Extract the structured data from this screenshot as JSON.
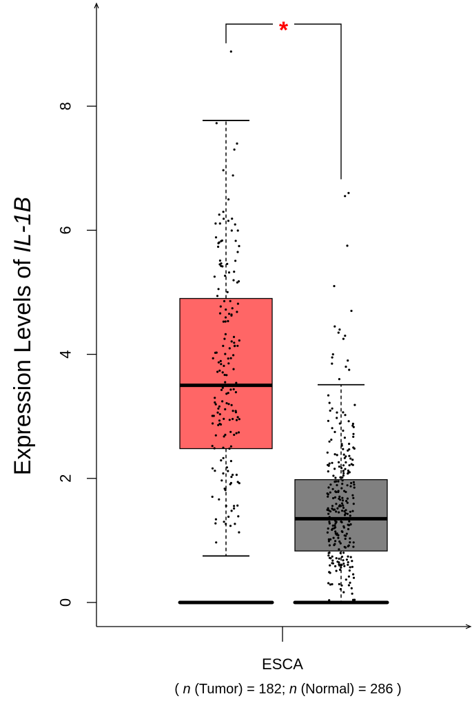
{
  "chart_data": {
    "type": "box",
    "ylabel": {
      "text": "Expression Levels of ",
      "gene": "IL-1B"
    },
    "ylim": [
      0,
      9
    ],
    "yticks": [
      0,
      2,
      4,
      6,
      8
    ],
    "category": "ESCA",
    "sample_note": {
      "open": "( ",
      "n1": "n",
      "tumor_text": " (Tumor) = 182; ",
      "n2": "n",
      "normal_text": " (Normal) = 286 )"
    },
    "significance": "*",
    "significance_color": "#ff0000",
    "grid": false,
    "series": [
      {
        "name": "Tumor",
        "n": 182,
        "color": "#ff6666",
        "whisker_low": 0.75,
        "q1": 2.48,
        "median": 3.5,
        "q3": 4.9,
        "whisker_high": 7.77,
        "zero_points": true,
        "outliers": [
          8.88
        ]
      },
      {
        "name": "Normal",
        "n": 286,
        "color": "#808080",
        "whisker_low": 0.0,
        "q1": 0.83,
        "median": 1.35,
        "q3": 1.98,
        "whisker_high": 3.51,
        "zero_points": true,
        "outliers": [
          3.6,
          3.75,
          3.8,
          3.85,
          3.9,
          3.95,
          4.0,
          4.25,
          4.3,
          4.35,
          4.4,
          4.45,
          4.7,
          5.1,
          5.75,
          6.55,
          6.6
        ]
      }
    ]
  }
}
